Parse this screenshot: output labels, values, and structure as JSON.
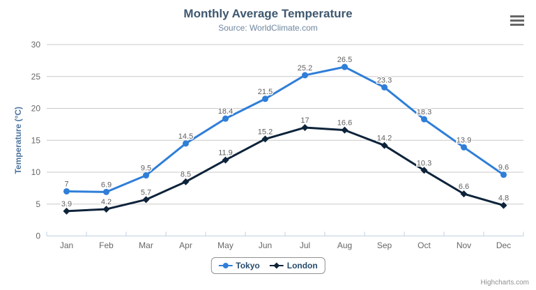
{
  "header": {
    "title": "Monthly Average Temperature",
    "subtitle": "Source: WorldClimate.com"
  },
  "toolbar": {
    "context_menu_icon": "hamburger-icon"
  },
  "credits": "Highcharts.com",
  "colors": {
    "title": "#3E576F",
    "subtitle": "#6D869F",
    "axis_title": "#4d759e",
    "axis_labels": "#666666",
    "grid": "#C8C8C8",
    "axis_line": "#C0D0E0",
    "data_label": "#606060",
    "legend_text": "#274b6d",
    "legend_border": "#909090",
    "credits": "#909090",
    "tokyo": "#2f7ed8",
    "london": "#0d233a"
  },
  "chart_data": {
    "type": "line",
    "title": "Monthly Average Temperature",
    "subtitle": "Source: WorldClimate.com",
    "xlabel": "",
    "ylabel": "Temperature (°C)",
    "ylim": [
      0,
      30
    ],
    "ytick_step": 5,
    "grid": true,
    "data_labels": true,
    "legend_position": "bottom-center",
    "categories": [
      "Jan",
      "Feb",
      "Mar",
      "Apr",
      "May",
      "Jun",
      "Jul",
      "Aug",
      "Sep",
      "Oct",
      "Nov",
      "Dec"
    ],
    "series": [
      {
        "name": "Tokyo",
        "color": "#2f7ed8",
        "marker": "circle",
        "values": [
          7,
          6.9,
          9.5,
          14.5,
          18.4,
          21.5,
          25.2,
          26.5,
          23.3,
          18.3,
          13.9,
          9.6
        ]
      },
      {
        "name": "London",
        "color": "#0d233a",
        "marker": "diamond",
        "values": [
          3.9,
          4.2,
          5.7,
          8.5,
          11.9,
          15.2,
          17,
          16.6,
          14.2,
          10.3,
          6.6,
          4.8
        ]
      }
    ]
  }
}
